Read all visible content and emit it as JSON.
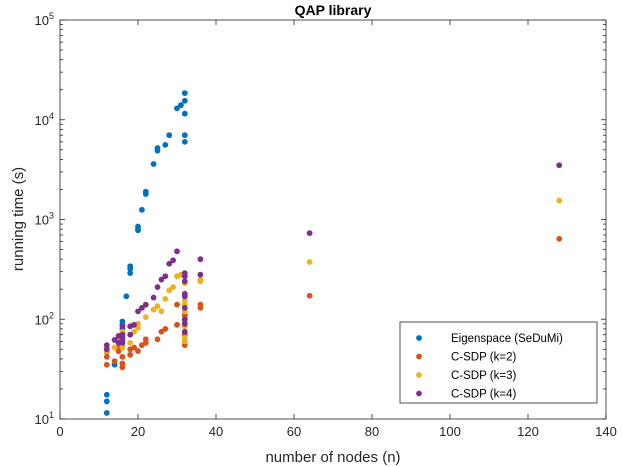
{
  "chart_data": {
    "type": "scatter",
    "title": "QAP library",
    "xlabel": "number of nodes (n)",
    "ylabel": "running time (s)",
    "xlim": [
      0,
      140
    ],
    "ylim": [
      10,
      100000
    ],
    "yscale": "log",
    "x_ticks": [
      0,
      20,
      40,
      60,
      80,
      100,
      120,
      140
    ],
    "x_tick_labels": [
      "0",
      "20",
      "40",
      "60",
      "80",
      "100",
      "120",
      "140"
    ],
    "y_ticks": [
      10,
      100,
      1000,
      10000,
      100000
    ],
    "y_tick_labels": [
      {
        "base": "10",
        "exp": "1"
      },
      {
        "base": "10",
        "exp": "2"
      },
      {
        "base": "10",
        "exp": "3"
      },
      {
        "base": "10",
        "exp": "4"
      },
      {
        "base": "10",
        "exp": "5"
      }
    ],
    "legend_position": "bottom-right",
    "series": [
      {
        "name": "Eigenspace (SeDuMi)",
        "color": "#0072BD",
        "points": [
          [
            12,
            11.5
          ],
          [
            12,
            15
          ],
          [
            12,
            17.5
          ],
          [
            14,
            35
          ],
          [
            15,
            48
          ],
          [
            15,
            52
          ],
          [
            16,
            68
          ],
          [
            16,
            72
          ],
          [
            16,
            80
          ],
          [
            16,
            88
          ],
          [
            16,
            95
          ],
          [
            17,
            170
          ],
          [
            18,
            320
          ],
          [
            18,
            340
          ],
          [
            18,
            290
          ],
          [
            20,
            800
          ],
          [
            20,
            850
          ],
          [
            20,
            780
          ],
          [
            21,
            1250
          ],
          [
            22,
            1800
          ],
          [
            22,
            1900
          ],
          [
            24,
            3600
          ],
          [
            25,
            4900
          ],
          [
            25,
            5200
          ],
          [
            27,
            5600
          ],
          [
            28,
            7000
          ],
          [
            30,
            13000
          ],
          [
            31,
            14000
          ],
          [
            32,
            18500
          ],
          [
            32,
            15500
          ],
          [
            32,
            11500
          ],
          [
            32,
            7000
          ],
          [
            32,
            6000
          ]
        ]
      },
      {
        "name": "C-SDP (k=2)",
        "color": "#D95319",
        "points": [
          [
            12,
            42
          ],
          [
            12,
            35
          ],
          [
            12,
            47
          ],
          [
            14,
            38
          ],
          [
            15,
            48
          ],
          [
            15,
            52
          ],
          [
            16,
            33
          ],
          [
            16,
            36
          ],
          [
            16,
            42
          ],
          [
            16,
            55
          ],
          [
            18,
            44
          ],
          [
            18,
            50
          ],
          [
            19,
            52
          ],
          [
            20,
            48
          ],
          [
            21,
            55
          ],
          [
            22,
            58
          ],
          [
            22,
            63
          ],
          [
            25,
            63
          ],
          [
            26,
            75
          ],
          [
            27,
            80
          ],
          [
            30,
            88
          ],
          [
            30,
            140
          ],
          [
            32,
            55
          ],
          [
            32,
            60
          ],
          [
            32,
            70
          ],
          [
            32,
            100
          ],
          [
            32,
            110
          ],
          [
            36,
            130
          ],
          [
            36,
            140
          ],
          [
            64,
            172
          ],
          [
            128,
            640
          ]
        ]
      },
      {
        "name": "C-SDP (k=3)",
        "color": "#EDB120",
        "points": [
          [
            12,
            48
          ],
          [
            12,
            52
          ],
          [
            14,
            52
          ],
          [
            15,
            58
          ],
          [
            15,
            62
          ],
          [
            16,
            52
          ],
          [
            16,
            55
          ],
          [
            16,
            62
          ],
          [
            16,
            75
          ],
          [
            18,
            58
          ],
          [
            19,
            75
          ],
          [
            20,
            82
          ],
          [
            20,
            90
          ],
          [
            22,
            105
          ],
          [
            24,
            125
          ],
          [
            25,
            135
          ],
          [
            26,
            120
          ],
          [
            27,
            160
          ],
          [
            28,
            195
          ],
          [
            29,
            210
          ],
          [
            30,
            270
          ],
          [
            31,
            280
          ],
          [
            32,
            60
          ],
          [
            32,
            65
          ],
          [
            32,
            85
          ],
          [
            32,
            95
          ],
          [
            32,
            120
          ],
          [
            32,
            140
          ],
          [
            32,
            155
          ],
          [
            32,
            175
          ],
          [
            32,
            230
          ],
          [
            36,
            240
          ],
          [
            36,
            250
          ],
          [
            64,
            375
          ],
          [
            128,
            1550
          ]
        ]
      },
      {
        "name": "C-SDP (k=4)",
        "color": "#7E2F8E",
        "points": [
          [
            12,
            50
          ],
          [
            12,
            55
          ],
          [
            14,
            62
          ],
          [
            15,
            58
          ],
          [
            15,
            68
          ],
          [
            16,
            58
          ],
          [
            16,
            62
          ],
          [
            16,
            65
          ],
          [
            16,
            70
          ],
          [
            16,
            85
          ],
          [
            18,
            70
          ],
          [
            18,
            85
          ],
          [
            19,
            88
          ],
          [
            20,
            120
          ],
          [
            21,
            130
          ],
          [
            22,
            140
          ],
          [
            24,
            165
          ],
          [
            25,
            210
          ],
          [
            26,
            250
          ],
          [
            27,
            270
          ],
          [
            28,
            360
          ],
          [
            29,
            390
          ],
          [
            30,
            480
          ],
          [
            32,
            75
          ],
          [
            32,
            90
          ],
          [
            32,
            100
          ],
          [
            32,
            130
          ],
          [
            32,
            170
          ],
          [
            32,
            180
          ],
          [
            32,
            240
          ],
          [
            32,
            270
          ],
          [
            32,
            290
          ],
          [
            36,
            280
          ],
          [
            36,
            400
          ],
          [
            64,
            730
          ],
          [
            128,
            3500
          ]
        ]
      }
    ]
  }
}
